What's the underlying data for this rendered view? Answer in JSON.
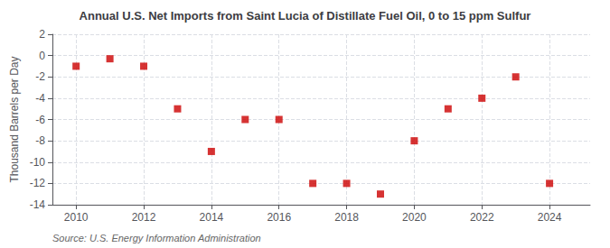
{
  "chart_data": {
    "type": "scatter",
    "title": "Annual U.S. Net Imports from Saint Lucia of Distillate Fuel Oil, 0 to 15 ppm Sulfur",
    "ylabel": "Thousand Barrels per Day",
    "source": "Source: U.S. Energy Information Administration",
    "x": [
      2010,
      2011,
      2012,
      2013,
      2014,
      2015,
      2016,
      2017,
      2018,
      2019,
      2020,
      2021,
      2022,
      2023,
      2024
    ],
    "values": [
      -1.0,
      -0.3,
      -1.0,
      -5.0,
      -9.0,
      -6.0,
      -6.0,
      -12.0,
      -12.0,
      -13.0,
      -8.0,
      -5.0,
      -4.0,
      -2.0,
      -12.0
    ],
    "color": "#cc0000",
    "marker": "square",
    "xlim": [
      2009.3,
      2025.2
    ],
    "xticks": [
      2010,
      2012,
      2014,
      2016,
      2018,
      2020,
      2022,
      2024
    ],
    "ylim": [
      -14,
      2
    ],
    "yticks": [
      2,
      0,
      -2,
      -4,
      -6,
      -8,
      -10,
      -12,
      -14
    ],
    "grid": true
  }
}
